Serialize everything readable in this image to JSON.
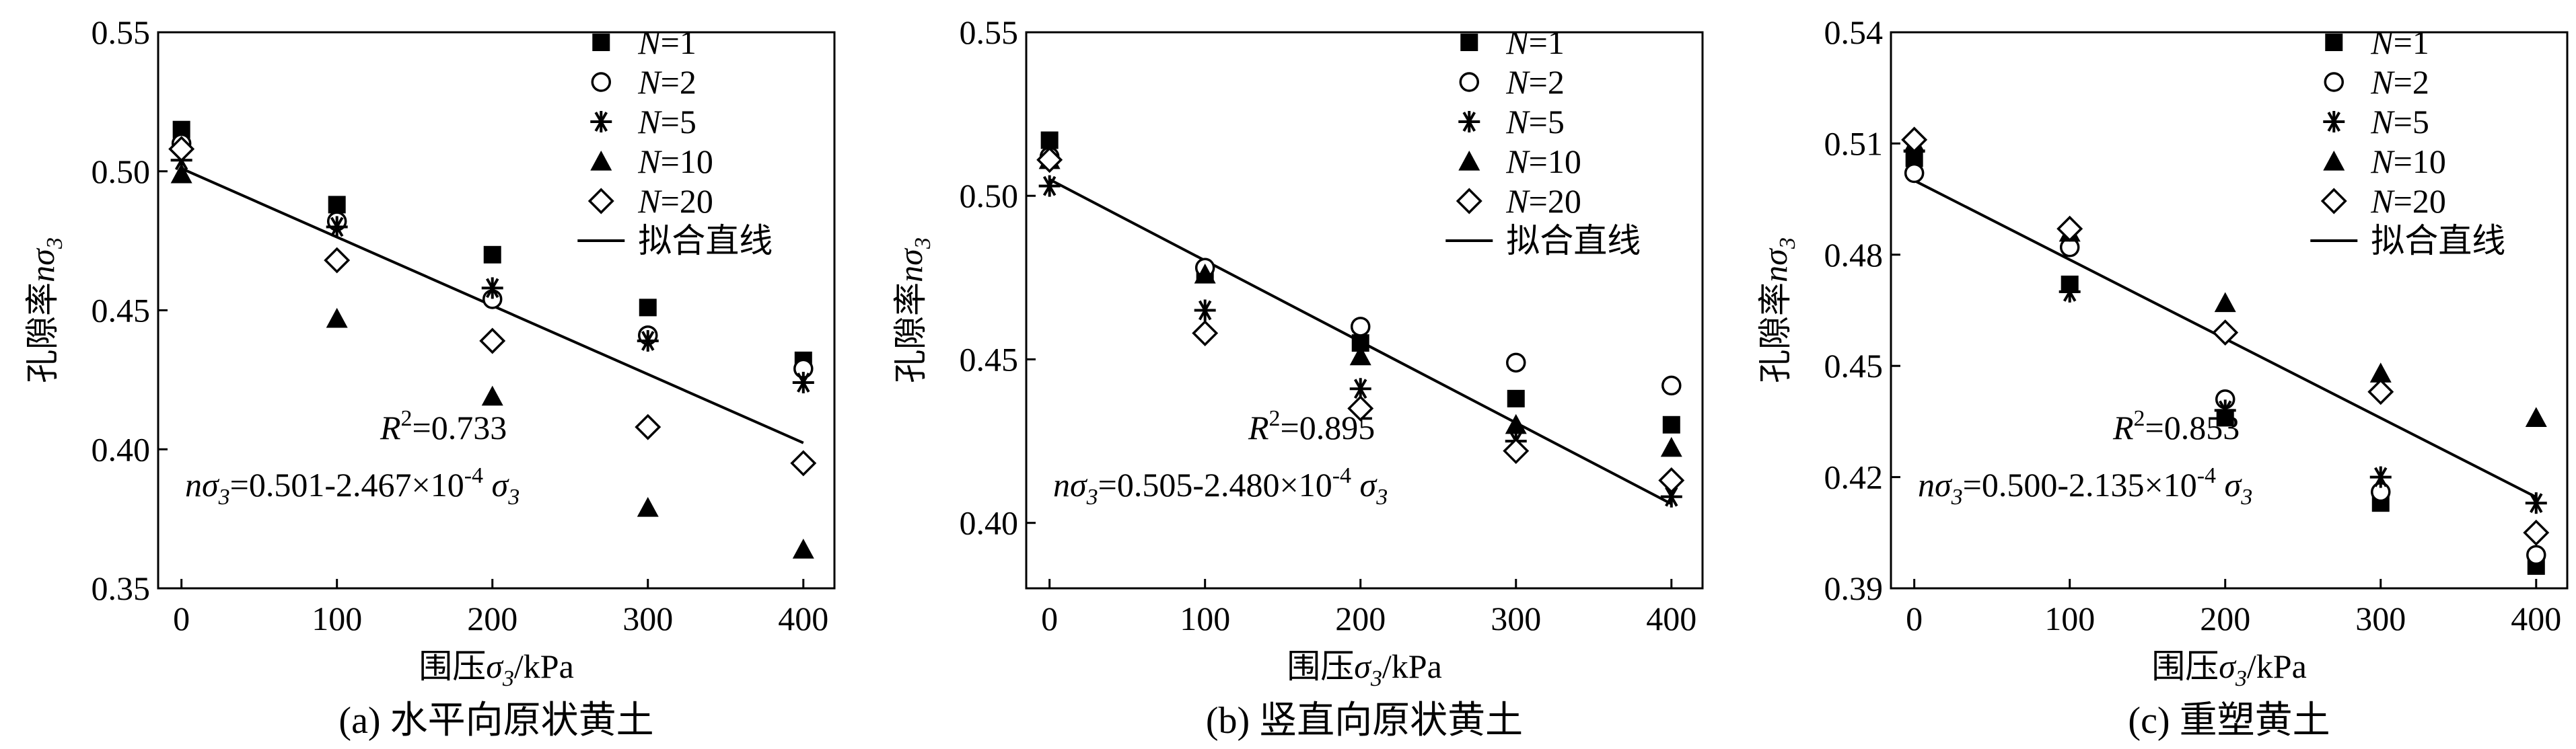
{
  "chart_data": [
    {
      "type": "scatter",
      "panel_caption": "(a) 水平向原状黄土",
      "xlabel": "围压σ3/kPa",
      "ylabel": "孔隙率nσ3",
      "xlim": [
        -15,
        420
      ],
      "ylim": [
        0.35,
        0.55
      ],
      "xticks": [
        0,
        100,
        200,
        300,
        400
      ],
      "yticks": [
        0.35,
        0.4,
        0.45,
        0.5,
        0.55
      ],
      "ytick_labels": [
        "0.35",
        "0.40",
        "0.45",
        "0.50",
        "0.55"
      ],
      "series": [
        {
          "name": "N=1",
          "marker": "square",
          "x": [
            0,
            100,
            200,
            300,
            400
          ],
          "y": [
            0.515,
            0.488,
            0.47,
            0.451,
            0.432
          ]
        },
        {
          "name": "N=2",
          "marker": "circle",
          "x": [
            0,
            100,
            200,
            300,
            400
          ],
          "y": [
            0.51,
            0.482,
            0.454,
            0.441,
            0.429
          ]
        },
        {
          "name": "N=5",
          "marker": "asterisk",
          "x": [
            0,
            100,
            200,
            300,
            400
          ],
          "y": [
            0.504,
            0.48,
            0.458,
            0.439,
            0.424
          ]
        },
        {
          "name": "N=10",
          "marker": "triangle",
          "x": [
            0,
            100,
            200,
            300,
            400
          ],
          "y": [
            0.499,
            0.447,
            0.419,
            0.379,
            0.364
          ]
        },
        {
          "name": "N=20",
          "marker": "diamond",
          "x": [
            0,
            100,
            200,
            300,
            400
          ],
          "y": [
            0.508,
            0.468,
            0.439,
            0.408,
            0.395
          ]
        }
      ],
      "fit": {
        "label": "拟合直线",
        "intercept": 0.501,
        "slope": -0.0002467,
        "x_range": [
          0,
          400
        ]
      },
      "annotations": {
        "r2": "R²=0.733",
        "equation": "nσ3=0.501-2.467×10⁻⁴ σ3"
      }
    },
    {
      "type": "scatter",
      "panel_caption": "(b) 竖直向原状黄土",
      "xlabel": "围压σ3/kPa",
      "ylabel": "孔隙率nσ3",
      "xlim": [
        -15,
        420
      ],
      "ylim": [
        0.38,
        0.55
      ],
      "xticks": [
        0,
        100,
        200,
        300,
        400
      ],
      "yticks": [
        0.4,
        0.45,
        0.5,
        0.55
      ],
      "ytick_labels": [
        "0.40",
        "0.45",
        "0.50",
        "0.55"
      ],
      "series": [
        {
          "name": "N=1",
          "marker": "square",
          "x": [
            0,
            100,
            200,
            300,
            400
          ],
          "y": [
            0.517,
            0.476,
            0.455,
            0.438,
            0.43
          ]
        },
        {
          "name": "N=2",
          "marker": "circle",
          "x": [
            0,
            100,
            200,
            300,
            400
          ],
          "y": [
            0.512,
            0.478,
            0.46,
            0.449,
            0.442
          ]
        },
        {
          "name": "N=5",
          "marker": "asterisk",
          "x": [
            0,
            100,
            200,
            300,
            400
          ],
          "y": [
            0.503,
            0.465,
            0.441,
            0.425,
            0.408
          ]
        },
        {
          "name": "N=10",
          "marker": "triangle",
          "x": [
            0,
            100,
            200,
            300,
            400
          ],
          "y": [
            0.511,
            0.476,
            0.451,
            0.43,
            0.423
          ]
        },
        {
          "name": "N=20",
          "marker": "diamond",
          "x": [
            0,
            100,
            200,
            300,
            400
          ],
          "y": [
            0.511,
            0.458,
            0.435,
            0.422,
            0.413
          ]
        }
      ],
      "fit": {
        "label": "拟合直线",
        "intercept": 0.505,
        "slope": -0.000248,
        "x_range": [
          0,
          400
        ]
      },
      "annotations": {
        "r2": "R²=0.895",
        "equation": "nσ3=0.505-2.480×10⁻⁴ σ3"
      }
    },
    {
      "type": "scatter",
      "panel_caption": "(c) 重塑黄土",
      "xlabel": "围压σ3/kPa",
      "ylabel": "孔隙率nσ3",
      "xlim": [
        -15,
        420
      ],
      "ylim": [
        0.39,
        0.54
      ],
      "xticks": [
        0,
        100,
        200,
        300,
        400
      ],
      "yticks": [
        0.39,
        0.42,
        0.45,
        0.48,
        0.51,
        0.54
      ],
      "ytick_labels": [
        "0.39",
        "0.42",
        "0.45",
        "0.48",
        "0.51",
        "0.54"
      ],
      "series": [
        {
          "name": "N=1",
          "marker": "square",
          "x": [
            0,
            100,
            200,
            300,
            400
          ],
          "y": [
            0.506,
            0.472,
            0.436,
            0.413,
            0.396
          ]
        },
        {
          "name": "N=2",
          "marker": "circle",
          "x": [
            0,
            100,
            200,
            300,
            400
          ],
          "y": [
            0.502,
            0.482,
            0.441,
            0.416,
            0.399
          ]
        },
        {
          "name": "N=5",
          "marker": "asterisk",
          "x": [
            0,
            100,
            200,
            300,
            400
          ],
          "y": [
            0.508,
            0.47,
            0.438,
            0.42,
            0.413
          ]
        },
        {
          "name": "N=10",
          "marker": "triangle",
          "x": [
            0,
            100,
            200,
            300,
            400
          ],
          "y": [
            0.51,
            0.486,
            0.467,
            0.448,
            0.436
          ]
        },
        {
          "name": "N=20",
          "marker": "diamond",
          "x": [
            0,
            100,
            200,
            300,
            400
          ],
          "y": [
            0.511,
            0.487,
            0.459,
            0.443,
            0.405
          ]
        }
      ],
      "fit": {
        "label": "拟合直线",
        "intercept": 0.5,
        "slope": -0.0002135,
        "x_range": [
          0,
          400
        ]
      },
      "annotations": {
        "r2": "R²=0.853",
        "equation": "nσ3=0.500-2.135×10⁻⁴ σ3"
      }
    }
  ],
  "colors": {
    "ink": "#000000",
    "background": "#ffffff"
  }
}
